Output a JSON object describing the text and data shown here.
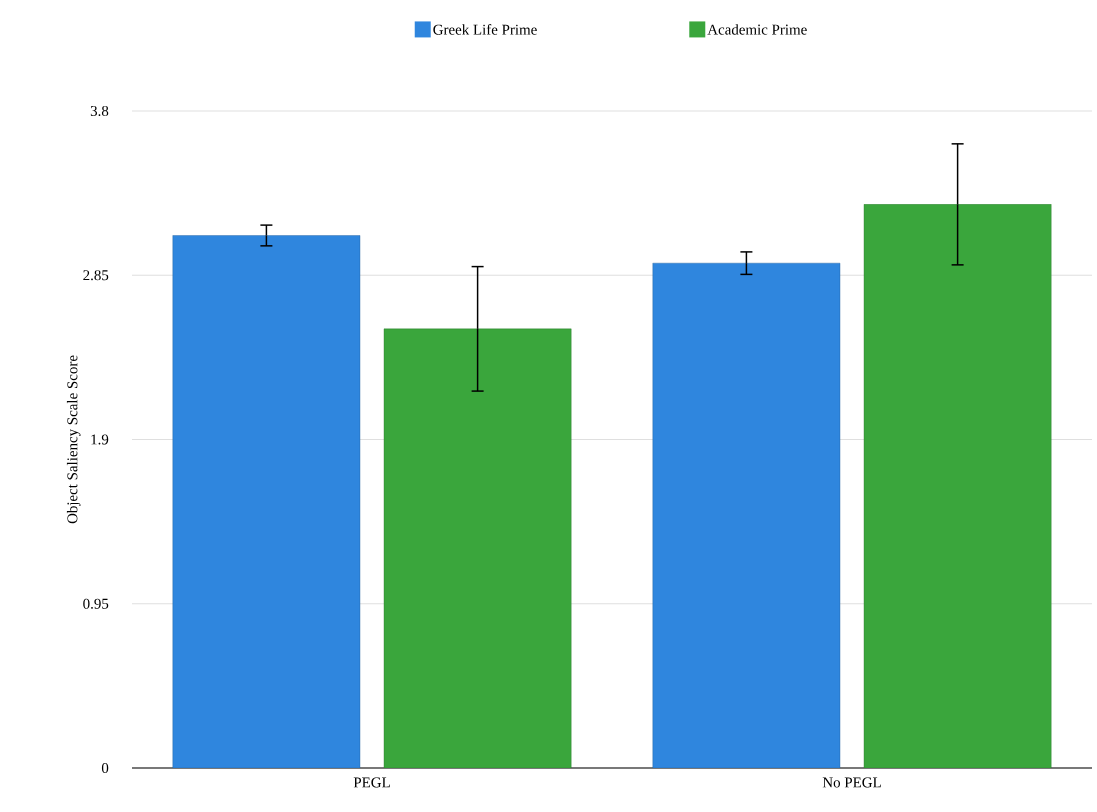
{
  "chart_data": {
    "type": "bar",
    "ylabel": "Object Saliency Scale Score",
    "categories": [
      "PEGL",
      "No PEGL"
    ],
    "series": [
      {
        "name": "Greek Life Prime",
        "color": "#2f86de",
        "values": [
          3.08,
          2.92
        ],
        "errors": [
          0.06,
          0.065
        ]
      },
      {
        "name": "Academic Prime",
        "color": "#3aa63c",
        "values": [
          2.54,
          3.26
        ],
        "errors": [
          0.36,
          0.35
        ]
      }
    ],
    "ylim": [
      0,
      3.8
    ],
    "yticks": [
      0,
      0.95,
      1.9,
      2.85,
      3.8
    ],
    "grid": "y",
    "legend": "top"
  }
}
